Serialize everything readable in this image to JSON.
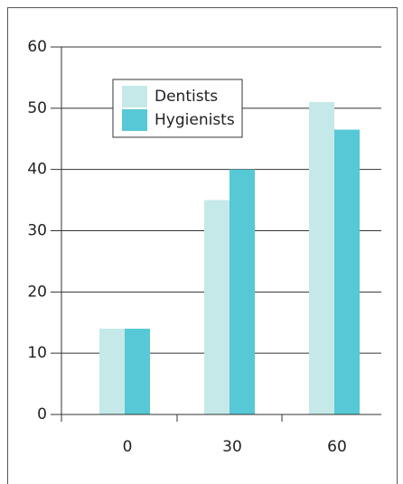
{
  "chart_data": {
    "type": "bar",
    "categories": [
      "0",
      "30",
      "60"
    ],
    "series": [
      {
        "name": "Dentists",
        "color": "#c5e8e8",
        "values": [
          14,
          35,
          51
        ]
      },
      {
        "name": "Hygienists",
        "color": "#56c8d6",
        "values": [
          14,
          40,
          46.5
        ]
      }
    ],
    "ylim": [
      0,
      60
    ],
    "yticks": [
      0,
      10,
      20,
      30,
      40,
      50,
      60
    ],
    "grid": true,
    "legend": "top-left"
  }
}
